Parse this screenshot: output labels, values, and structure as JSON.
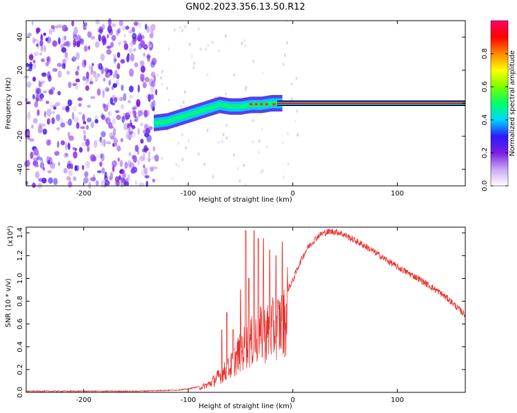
{
  "title": "GN02.2023.356.13.50.R12",
  "chart_data": [
    {
      "type": "heatmap",
      "name": "spectrogram",
      "xlabel": "Height of straight line (km)",
      "ylabel": "Frequency (Hz)",
      "xlim": [
        -255,
        165
      ],
      "ylim": [
        -50,
        50
      ],
      "xticks": [
        -200,
        -100,
        0,
        100
      ],
      "yticks": [
        -40,
        -20,
        0,
        20,
        40
      ],
      "colorbar": {
        "label": "Normalized spectral amplitude",
        "range": [
          0,
          1
        ],
        "ticks": [
          "0.0",
          "0.2",
          "0.4",
          "0.6",
          "0.8"
        ],
        "colors": [
          "#ffffff",
          "#c9a7f5",
          "#7a1fe0",
          "#2a19ff",
          "#00d8ff",
          "#00ff66",
          "#7cff00",
          "#ffff00",
          "#ff8800",
          "#ff0000",
          "#ff0066"
        ]
      },
      "noise_region_x": [
        -255,
        -130
      ],
      "carrier": {
        "frequency_hz": 0,
        "x_start": -15,
        "x_end": 165,
        "track": [
          {
            "x": -133,
            "f": -12
          },
          {
            "x": -120,
            "f": -11
          },
          {
            "x": -110,
            "f": -9
          },
          {
            "x": -100,
            "f": -7
          },
          {
            "x": -90,
            "f": -5
          },
          {
            "x": -80,
            "f": -3
          },
          {
            "x": -70,
            "f": -1
          },
          {
            "x": -60,
            "f": -2
          },
          {
            "x": -50,
            "f": -2
          },
          {
            "x": -40,
            "f": -1
          },
          {
            "x": -30,
            "f": -1
          },
          {
            "x": -20,
            "f": 0
          },
          {
            "x": -10,
            "f": 0
          }
        ]
      }
    },
    {
      "type": "line",
      "name": "snr",
      "xlabel": "Height of straight line (km)",
      "ylabel": "SNR (10 * v/v)",
      "y_multiplier": "(x10⁴)",
      "xlim": [
        -255,
        165
      ],
      "ylim": [
        0,
        1.45
      ],
      "xticks": [
        -200,
        -100,
        0,
        100
      ],
      "yticks": [
        "0.0",
        "0.2",
        "0.4",
        "0.6",
        "0.8",
        "1.0",
        "1.2",
        "1.4"
      ],
      "color": "#e8302b",
      "series": [
        {
          "name": "SNR",
          "x": [
            -255,
            -200,
            -150,
            -110,
            -100,
            -90,
            -80,
            -70,
            -65,
            -60,
            -55,
            -50,
            -45,
            -40,
            -35,
            -30,
            -25,
            -20,
            -15,
            -10,
            -5,
            0,
            5,
            10,
            15,
            20,
            25,
            30,
            35,
            40,
            45,
            50,
            60,
            70,
            80,
            90,
            100,
            110,
            120,
            130,
            140,
            150,
            160,
            165
          ],
          "envelope": [
            0.01,
            0.01,
            0.01,
            0.02,
            0.03,
            0.05,
            0.1,
            0.2,
            0.25,
            0.3,
            0.4,
            0.5,
            0.55,
            0.6,
            0.65,
            0.7,
            0.72,
            0.75,
            0.8,
            0.85,
            0.9,
            0.98,
            1.1,
            1.2,
            1.28,
            1.33,
            1.38,
            1.4,
            1.41,
            1.41,
            1.4,
            1.38,
            1.33,
            1.28,
            1.22,
            1.16,
            1.1,
            1.05,
            1.0,
            0.94,
            0.88,
            0.81,
            0.72,
            0.68
          ],
          "spikes": [
            {
              "x": -68,
              "y": 0.55
            },
            {
              "x": -63,
              "y": 0.7
            },
            {
              "x": -57,
              "y": 0.55
            },
            {
              "x": -50,
              "y": 0.9
            },
            {
              "x": -45,
              "y": 1.42
            },
            {
              "x": -42,
              "y": 1.0
            },
            {
              "x": -37,
              "y": 1.42
            },
            {
              "x": -33,
              "y": 1.35
            },
            {
              "x": -28,
              "y": 1.35
            },
            {
              "x": -22,
              "y": 1.25
            },
            {
              "x": -16,
              "y": 1.2
            },
            {
              "x": -10,
              "y": 1.32
            },
            {
              "x": -5,
              "y": 1.1
            }
          ]
        }
      ]
    }
  ]
}
